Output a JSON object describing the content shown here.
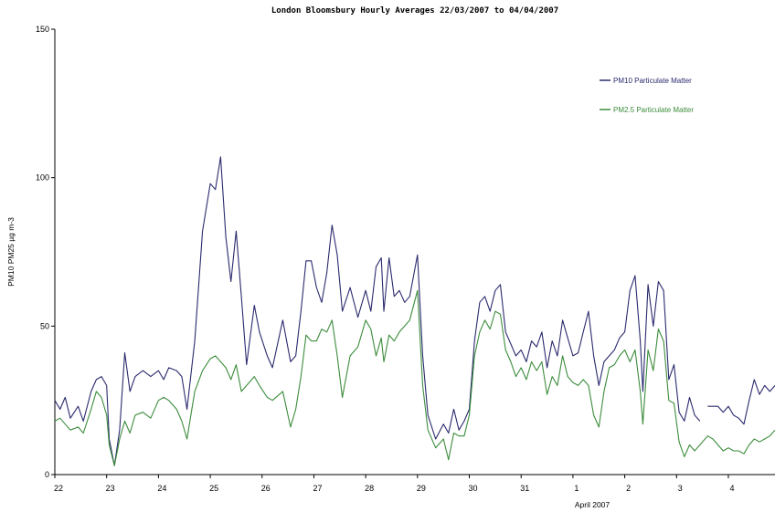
{
  "chart_data": {
    "type": "line",
    "title": "London Bloomsbury Hourly Averages 22/03/2007 to 04/04/2007",
    "xlabel": "April 2007",
    "ylabel": "PM10 PM25 µg m-3",
    "ylim": [
      0,
      150
    ],
    "y_ticks": [
      0,
      50,
      100,
      150
    ],
    "xlim": [
      0,
      13.9
    ],
    "x_ticks": [
      {
        "x": 0,
        "label": "22"
      },
      {
        "x": 1,
        "label": "23"
      },
      {
        "x": 2,
        "label": "24"
      },
      {
        "x": 3,
        "label": "25"
      },
      {
        "x": 4,
        "label": "26"
      },
      {
        "x": 5,
        "label": "27"
      },
      {
        "x": 6,
        "label": "28"
      },
      {
        "x": 7,
        "label": "29"
      },
      {
        "x": 8,
        "label": "30"
      },
      {
        "x": 9,
        "label": "31"
      },
      {
        "x": 10,
        "label": "1"
      },
      {
        "x": 11,
        "label": "2"
      },
      {
        "x": 12,
        "label": "3"
      },
      {
        "x": 13,
        "label": "4"
      }
    ],
    "grid": false,
    "legend_position": "top-right",
    "series": [
      {
        "name": "PM10 Particulate Matter",
        "color": "#2a2a6e",
        "points": [
          [
            0,
            25
          ],
          [
            0.1,
            22
          ],
          [
            0.2,
            26
          ],
          [
            0.3,
            19
          ],
          [
            0.45,
            23
          ],
          [
            0.55,
            18
          ],
          [
            0.7,
            28
          ],
          [
            0.8,
            32
          ],
          [
            0.9,
            33
          ],
          [
            1,
            30
          ],
          [
            1.05,
            12
          ],
          [
            1.15,
            3
          ],
          [
            1.25,
            15
          ],
          [
            1.35,
            41
          ],
          [
            1.45,
            28
          ],
          [
            1.55,
            33
          ],
          [
            1.7,
            35
          ],
          [
            1.85,
            33
          ],
          [
            2,
            35
          ],
          [
            2.1,
            32
          ],
          [
            2.2,
            36
          ],
          [
            2.35,
            35
          ],
          [
            2.45,
            33
          ],
          [
            2.55,
            22
          ],
          [
            2.7,
            45
          ],
          [
            2.85,
            82
          ],
          [
            3,
            98
          ],
          [
            3.1,
            96
          ],
          [
            3.2,
            107
          ],
          [
            3.3,
            80
          ],
          [
            3.4,
            65
          ],
          [
            3.5,
            82
          ],
          [
            3.6,
            60
          ],
          [
            3.7,
            37
          ],
          [
            3.85,
            57
          ],
          [
            3.95,
            48
          ],
          [
            4.1,
            40
          ],
          [
            4.2,
            36
          ],
          [
            4.4,
            52
          ],
          [
            4.55,
            38
          ],
          [
            4.65,
            40
          ],
          [
            4.75,
            55
          ],
          [
            4.85,
            72
          ],
          [
            4.95,
            72
          ],
          [
            5.05,
            63
          ],
          [
            5.15,
            58
          ],
          [
            5.25,
            68
          ],
          [
            5.35,
            84
          ],
          [
            5.45,
            74
          ],
          [
            5.55,
            55
          ],
          [
            5.7,
            63
          ],
          [
            5.85,
            53
          ],
          [
            6.0,
            62
          ],
          [
            6.1,
            55
          ],
          [
            6.2,
            70
          ],
          [
            6.3,
            73
          ],
          [
            6.35,
            55
          ],
          [
            6.45,
            73
          ],
          [
            6.55,
            60
          ],
          [
            6.65,
            62
          ],
          [
            6.75,
            58
          ],
          [
            6.85,
            60
          ],
          [
            7,
            74
          ],
          [
            7.1,
            40
          ],
          [
            7.2,
            20
          ],
          [
            7.35,
            12
          ],
          [
            7.5,
            17
          ],
          [
            7.6,
            14
          ],
          [
            7.7,
            22
          ],
          [
            7.8,
            15
          ],
          [
            7.9,
            18
          ],
          [
            8,
            22
          ],
          [
            8.1,
            45
          ],
          [
            8.2,
            58
          ],
          [
            8.3,
            60
          ],
          [
            8.4,
            55
          ],
          [
            8.5,
            62
          ],
          [
            8.6,
            64
          ],
          [
            8.7,
            48
          ],
          [
            8.8,
            44
          ],
          [
            8.9,
            40
          ],
          [
            9,
            42
          ],
          [
            9.1,
            38
          ],
          [
            9.2,
            45
          ],
          [
            9.3,
            43
          ],
          [
            9.4,
            48
          ],
          [
            9.5,
            36
          ],
          [
            9.6,
            45
          ],
          [
            9.7,
            40
          ],
          [
            9.8,
            52
          ],
          [
            9.9,
            46
          ],
          [
            10,
            40
          ],
          [
            10.1,
            41
          ],
          [
            10.2,
            48
          ],
          [
            10.3,
            55
          ],
          [
            10.4,
            40
          ],
          [
            10.5,
            30
          ],
          [
            10.6,
            38
          ],
          [
            10.7,
            40
          ],
          [
            10.8,
            42
          ],
          [
            10.9,
            46
          ],
          [
            11,
            48
          ],
          [
            11.1,
            62
          ],
          [
            11.2,
            67
          ],
          [
            11.3,
            45
          ],
          [
            11.35,
            28
          ],
          [
            11.45,
            64
          ],
          [
            11.55,
            50
          ],
          [
            11.65,
            65
          ],
          [
            11.75,
            62
          ],
          [
            11.85,
            32
          ],
          [
            11.95,
            37
          ],
          [
            12.05,
            21
          ],
          [
            12.15,
            18
          ],
          [
            12.25,
            26
          ],
          [
            12.35,
            20
          ],
          [
            12.45,
            18
          ],
          [
            null,
            null
          ],
          [
            12.6,
            23
          ],
          [
            12.7,
            23
          ],
          [
            12.8,
            23
          ],
          [
            12.9,
            21
          ],
          [
            13.0,
            23
          ],
          [
            13.1,
            20
          ],
          [
            13.2,
            19
          ],
          [
            13.3,
            17
          ],
          [
            13.4,
            25
          ],
          [
            13.5,
            32
          ],
          [
            13.6,
            27
          ],
          [
            13.7,
            30
          ],
          [
            13.8,
            28
          ],
          [
            13.9,
            30
          ]
        ]
      },
      {
        "name": "PM2.5 Particulate Matter",
        "color": "#3c8c3c",
        "points": [
          [
            0,
            18
          ],
          [
            0.1,
            19
          ],
          [
            0.2,
            17
          ],
          [
            0.3,
            15
          ],
          [
            0.45,
            16
          ],
          [
            0.55,
            14
          ],
          [
            0.7,
            22
          ],
          [
            0.8,
            28
          ],
          [
            0.9,
            26
          ],
          [
            1,
            20
          ],
          [
            1.05,
            10
          ],
          [
            1.15,
            3
          ],
          [
            1.25,
            12
          ],
          [
            1.35,
            18
          ],
          [
            1.45,
            14
          ],
          [
            1.55,
            20
          ],
          [
            1.7,
            21
          ],
          [
            1.85,
            19
          ],
          [
            2,
            25
          ],
          [
            2.1,
            26
          ],
          [
            2.2,
            25
          ],
          [
            2.35,
            22
          ],
          [
            2.45,
            18
          ],
          [
            2.55,
            12
          ],
          [
            2.7,
            28
          ],
          [
            2.85,
            35
          ],
          [
            3,
            39
          ],
          [
            3.1,
            40
          ],
          [
            3.2,
            38
          ],
          [
            3.3,
            36
          ],
          [
            3.4,
            32
          ],
          [
            3.5,
            37
          ],
          [
            3.6,
            28
          ],
          [
            3.7,
            30
          ],
          [
            3.85,
            33
          ],
          [
            3.95,
            30
          ],
          [
            4.1,
            26
          ],
          [
            4.2,
            25
          ],
          [
            4.4,
            28
          ],
          [
            4.55,
            16
          ],
          [
            4.65,
            22
          ],
          [
            4.75,
            33
          ],
          [
            4.85,
            47
          ],
          [
            4.95,
            45
          ],
          [
            5.05,
            45
          ],
          [
            5.15,
            49
          ],
          [
            5.25,
            48
          ],
          [
            5.35,
            52
          ],
          [
            5.45,
            40
          ],
          [
            5.55,
            26
          ],
          [
            5.7,
            40
          ],
          [
            5.85,
            43
          ],
          [
            6.0,
            52
          ],
          [
            6.1,
            49
          ],
          [
            6.2,
            40
          ],
          [
            6.3,
            46
          ],
          [
            6.35,
            38
          ],
          [
            6.45,
            47
          ],
          [
            6.55,
            45
          ],
          [
            6.65,
            48
          ],
          [
            6.75,
            50
          ],
          [
            6.85,
            52
          ],
          [
            7,
            62
          ],
          [
            7.1,
            30
          ],
          [
            7.2,
            15
          ],
          [
            7.35,
            9
          ],
          [
            7.5,
            12
          ],
          [
            7.6,
            5
          ],
          [
            7.7,
            14
          ],
          [
            7.8,
            13
          ],
          [
            7.9,
            13
          ],
          [
            8,
            20
          ],
          [
            8.1,
            40
          ],
          [
            8.2,
            48
          ],
          [
            8.3,
            52
          ],
          [
            8.4,
            49
          ],
          [
            8.5,
            55
          ],
          [
            8.6,
            54
          ],
          [
            8.7,
            42
          ],
          [
            8.8,
            38
          ],
          [
            8.9,
            33
          ],
          [
            9,
            36
          ],
          [
            9.1,
            32
          ],
          [
            9.2,
            38
          ],
          [
            9.3,
            35
          ],
          [
            9.4,
            38
          ],
          [
            9.5,
            27
          ],
          [
            9.6,
            33
          ],
          [
            9.7,
            30
          ],
          [
            9.8,
            40
          ],
          [
            9.9,
            33
          ],
          [
            10,
            31
          ],
          [
            10.1,
            30
          ],
          [
            10.2,
            32
          ],
          [
            10.3,
            30
          ],
          [
            10.4,
            20
          ],
          [
            10.5,
            16
          ],
          [
            10.6,
            28
          ],
          [
            10.7,
            36
          ],
          [
            10.8,
            37
          ],
          [
            10.9,
            40
          ],
          [
            11,
            42
          ],
          [
            11.1,
            38
          ],
          [
            11.2,
            42
          ],
          [
            11.3,
            28
          ],
          [
            11.35,
            17
          ],
          [
            11.45,
            42
          ],
          [
            11.55,
            35
          ],
          [
            11.65,
            49
          ],
          [
            11.75,
            45
          ],
          [
            11.85,
            25
          ],
          [
            11.95,
            24
          ],
          [
            12.05,
            11
          ],
          [
            12.15,
            6
          ],
          [
            12.25,
            10
          ],
          [
            12.35,
            8
          ],
          [
            12.45,
            10
          ],
          [
            12.6,
            13
          ],
          [
            12.7,
            12
          ],
          [
            12.8,
            10
          ],
          [
            12.9,
            8
          ],
          [
            13.0,
            9
          ],
          [
            13.1,
            8
          ],
          [
            13.2,
            8
          ],
          [
            13.3,
            7
          ],
          [
            13.4,
            10
          ],
          [
            13.5,
            12
          ],
          [
            13.6,
            11
          ],
          [
            13.7,
            12
          ],
          [
            13.8,
            13
          ],
          [
            13.9,
            15
          ]
        ]
      }
    ]
  }
}
